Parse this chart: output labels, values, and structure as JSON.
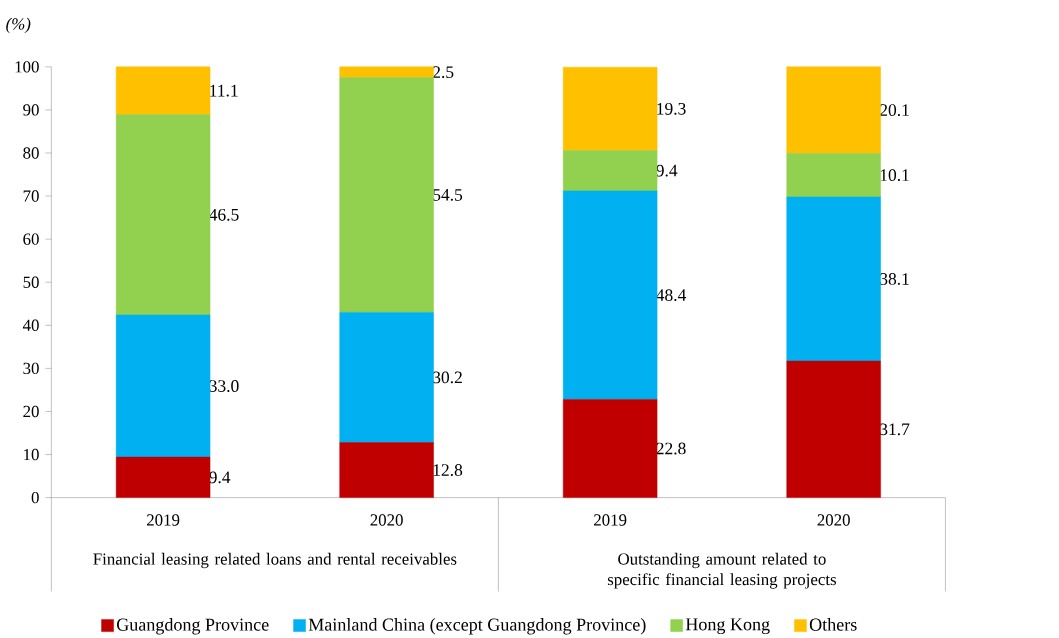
{
  "chart_data": {
    "type": "bar",
    "stacked": true,
    "ylabel": "(%)",
    "categories": [
      "2019",
      "2020",
      "2019",
      "2020"
    ],
    "annotations": [
      "Financial leasing related loans and rental receivables",
      "Outstanding amount related to specific financial leasing projects"
    ],
    "ylim": [
      0,
      100
    ],
    "yticks": [
      0,
      10,
      20,
      30,
      40,
      50,
      60,
      70,
      80,
      90,
      100
    ],
    "legend": "bottom",
    "series": [
      {
        "name": "Guangdong Province",
        "color": "#c00000",
        "values": [
          9.4,
          12.8,
          22.8,
          31.7
        ],
        "value_labels": [
          "9.4",
          "12.8",
          "22.8",
          "31.7"
        ]
      },
      {
        "name": "Mainland China (except Guangdong Province)",
        "color": "#00b0f0",
        "values": [
          33.0,
          30.2,
          48.4,
          38.1
        ],
        "value_labels": [
          "33.0",
          "30.2",
          "48.4",
          "38.1"
        ]
      },
      {
        "name": "Hong Kong",
        "color": "#92d050",
        "values": [
          46.5,
          54.5,
          9.4,
          10.1
        ],
        "value_labels": [
          "46.5",
          "54.5",
          "9.4",
          "10.1"
        ]
      },
      {
        "name": "Others",
        "color": "#ffc000",
        "values": [
          11.1,
          2.5,
          19.3,
          20.1
        ],
        "value_labels": [
          "11.1",
          "2.5",
          "19.3",
          "20.1"
        ]
      }
    ]
  }
}
